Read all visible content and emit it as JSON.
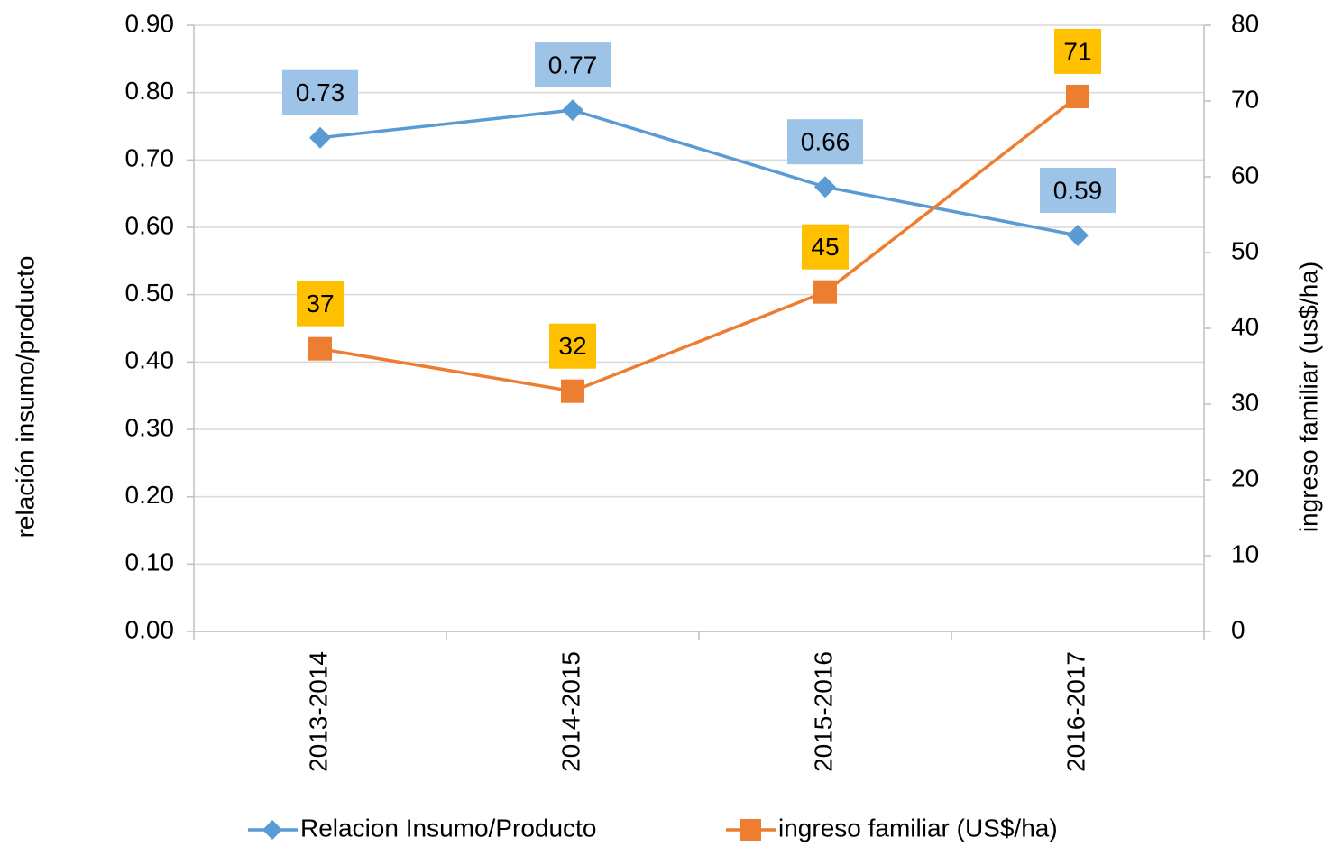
{
  "chart_data": {
    "type": "line",
    "categories": [
      "2013-2014",
      "2014-2015",
      "2015-2016",
      "2016-2017"
    ],
    "series": [
      {
        "name": "Relacion Insumo/Producto",
        "color": "#5b9bd5",
        "label_color": "#9dc3e6",
        "marker": "diamond",
        "values": [
          0.733,
          0.774,
          0.66,
          0.588
        ],
        "value_labels": [
          "0.73",
          "0.77",
          "0.66",
          "0.59"
        ]
      },
      {
        "name": "ingreso familiar (US$/ha)",
        "color": "#ed7d31",
        "label_color": "#ffc000",
        "marker": "square",
        "axis": "y2",
        "values": [
          37.3,
          31.7,
          44.8,
          70.6
        ],
        "value_labels": [
          "37",
          "32",
          "45",
          "71"
        ]
      }
    ],
    "ylabel": "relación insumo/producto",
    "y2label": "ingreso familiar (us$/ha)",
    "ylim": [
      0,
      0.9
    ],
    "yticks": [
      {
        "value": 0,
        "label": "0.00"
      },
      {
        "value": 0.1,
        "label": "0.10"
      },
      {
        "value": 0.2,
        "label": "0.20"
      },
      {
        "value": 0.3,
        "label": "0.30"
      },
      {
        "value": 0.4,
        "label": "0.40"
      },
      {
        "value": 0.5,
        "label": "0.50"
      },
      {
        "value": 0.6,
        "label": "0.60"
      },
      {
        "value": 0.7,
        "label": "0.70"
      },
      {
        "value": 0.8,
        "label": "0.80"
      },
      {
        "value": 0.9,
        "label": "0.90"
      }
    ],
    "y2lim": [
      0,
      80
    ],
    "y2ticks": [
      0,
      10,
      20,
      30,
      40,
      50,
      60,
      70,
      80
    ],
    "grid": true,
    "legend": "bottom"
  }
}
